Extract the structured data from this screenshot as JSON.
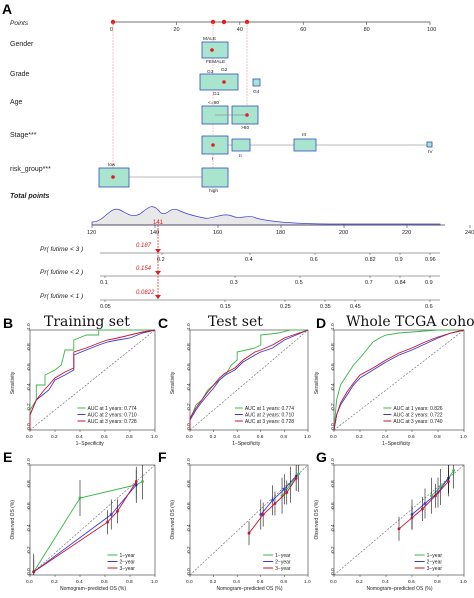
{
  "panels": {
    "A": "A",
    "B": "B",
    "C": "C",
    "D": "D",
    "E": "E",
    "F": "F",
    "G": "G"
  },
  "nomogram": {
    "points_label": "Points",
    "points_ticks": [
      "0",
      "20",
      "40",
      "60",
      "80",
      "100"
    ],
    "variables": [
      {
        "name": "Gender",
        "levels": [
          "MALE",
          "FEMALE"
        ]
      },
      {
        "name": "Grade",
        "levels": [
          "G3",
          "G2",
          "G1",
          "G4"
        ]
      },
      {
        "name": "Age",
        "levels": [
          "<=60",
          ">60"
        ]
      },
      {
        "name": "Stage***",
        "levels": [
          "I",
          "II",
          "III",
          "IV"
        ]
      },
      {
        "name": "risk_group***",
        "levels": [
          "low",
          "high"
        ]
      }
    ],
    "total_points_label": "Total points",
    "total_ticks": [
      "120",
      "140",
      "160",
      "180",
      "200",
      "220",
      "240"
    ],
    "total_value": "141",
    "prob_rows": [
      {
        "label": "Pr( futime < 3 )",
        "value": "0.187",
        "ticks": [
          "0.2",
          "0.4",
          "0.6",
          "0.82",
          "0.9",
          "0.96"
        ]
      },
      {
        "label": "Pr( futime < 2 )",
        "value": "0.154",
        "ticks": [
          "0.1",
          "0.3",
          "0.5",
          "0.7",
          "0.84",
          "0.9"
        ]
      },
      {
        "label": "Pr( futime < 1 )",
        "value": "0.0822",
        "ticks": [
          "0.05",
          "0.15",
          "0.25",
          "0.35",
          "0.45",
          "0.6"
        ]
      }
    ]
  },
  "chart_data": [
    {
      "type": "line",
      "panel": "B",
      "title": "Training set",
      "xlabel": "1−Specificity",
      "ylabel": "Sensitivity",
      "xlim": [
        0,
        1
      ],
      "ylim": [
        0,
        1
      ],
      "ticks": [
        "0.0",
        "0.2",
        "0.4",
        "0.6",
        "0.8",
        "1.0"
      ],
      "series": [
        {
          "name": "AUC at 1 years: 0.774",
          "color": "#3cb44b",
          "x": [
            0,
            0,
            0.05,
            0.05,
            0.12,
            0.12,
            0.2,
            0.25,
            0.28,
            0.35,
            0.35,
            0.45,
            0.55,
            0.55,
            0.65,
            0.8,
            1
          ],
          "y": [
            0,
            0.2,
            0.3,
            0.45,
            0.45,
            0.55,
            0.6,
            0.65,
            0.8,
            0.8,
            0.9,
            0.95,
            0.95,
            1,
            1,
            1,
            1
          ]
        },
        {
          "name": "AUC at 2 years: 0.710",
          "color": "#3b3bdb",
          "x": [
            0,
            0,
            0.05,
            0.1,
            0.15,
            0.2,
            0.28,
            0.35,
            0.35,
            0.45,
            0.55,
            0.62,
            0.7,
            0.8,
            0.9,
            1
          ],
          "y": [
            0,
            0.15,
            0.3,
            0.35,
            0.4,
            0.5,
            0.55,
            0.6,
            0.75,
            0.8,
            0.85,
            0.88,
            0.9,
            0.92,
            0.97,
            1
          ]
        },
        {
          "name": "AUC at 3 years: 0.728",
          "color": "#c8102e",
          "x": [
            0,
            0,
            0.05,
            0.1,
            0.15,
            0.2,
            0.28,
            0.35,
            0.35,
            0.45,
            0.55,
            0.62,
            0.7,
            0.8,
            0.9,
            1
          ],
          "y": [
            0,
            0.15,
            0.3,
            0.38,
            0.45,
            0.52,
            0.58,
            0.62,
            0.78,
            0.82,
            0.87,
            0.9,
            0.92,
            0.95,
            0.98,
            1
          ]
        }
      ]
    },
    {
      "type": "line",
      "panel": "C",
      "title": "Test set",
      "xlabel": "1−Specificity",
      "ylabel": "Sensitivity",
      "xlim": [
        0,
        1
      ],
      "ylim": [
        0,
        1
      ],
      "ticks": [
        "0.0",
        "0.2",
        "0.4",
        "0.6",
        "0.8",
        "1.0"
      ],
      "series": [
        {
          "name": "AUC at 1 years: 0.774",
          "color": "#3cb44b",
          "x": [
            0,
            0,
            0.05,
            0.1,
            0.15,
            0.2,
            0.25,
            0.3,
            0.35,
            0.4,
            0.4,
            0.55,
            0.6,
            0.6,
            0.75,
            0.85,
            1
          ],
          "y": [
            0,
            0.1,
            0.25,
            0.3,
            0.4,
            0.45,
            0.5,
            0.55,
            0.65,
            0.7,
            0.78,
            0.82,
            0.85,
            0.95,
            0.97,
            1,
            1
          ]
        },
        {
          "name": "AUC at 2 years: 0.710",
          "color": "#3b3bdb",
          "x": [
            0,
            0,
            0.05,
            0.1,
            0.15,
            0.2,
            0.25,
            0.3,
            0.38,
            0.45,
            0.55,
            0.6,
            0.7,
            0.8,
            0.9,
            1
          ],
          "y": [
            0,
            0.1,
            0.2,
            0.28,
            0.35,
            0.42,
            0.5,
            0.55,
            0.6,
            0.68,
            0.75,
            0.78,
            0.82,
            0.9,
            0.95,
            1
          ]
        },
        {
          "name": "AUC at 3 years: 0.728",
          "color": "#c8102e",
          "x": [
            0,
            0,
            0.05,
            0.1,
            0.15,
            0.2,
            0.25,
            0.3,
            0.38,
            0.45,
            0.55,
            0.6,
            0.7,
            0.8,
            0.9,
            1
          ],
          "y": [
            0,
            0.12,
            0.22,
            0.3,
            0.38,
            0.45,
            0.52,
            0.57,
            0.62,
            0.7,
            0.78,
            0.8,
            0.85,
            0.92,
            0.96,
            1
          ]
        }
      ]
    },
    {
      "type": "line",
      "panel": "D",
      "title": "Whole TCGA cohort",
      "xlabel": "1−Specificity",
      "ylabel": "Sensitivity",
      "xlim": [
        0,
        1
      ],
      "ylim": [
        0,
        1
      ],
      "ticks": [
        "0.0",
        "0.2",
        "0.4",
        "0.6",
        "0.8",
        "1.0"
      ],
      "series": [
        {
          "name": "AUC at 1 years: 0.826",
          "color": "#3cb44b",
          "x": [
            0,
            0.02,
            0.05,
            0.1,
            0.15,
            0.2,
            0.25,
            0.3,
            0.35,
            0.4,
            0.5,
            0.6,
            0.7,
            0.8,
            0.9,
            1
          ],
          "y": [
            0,
            0.3,
            0.45,
            0.55,
            0.65,
            0.72,
            0.8,
            0.88,
            0.92,
            0.95,
            0.97,
            0.98,
            0.99,
            1,
            1,
            1
          ]
        },
        {
          "name": "AUC at 2 years: 0.722",
          "color": "#3b3bdb",
          "x": [
            0,
            0.02,
            0.05,
            0.1,
            0.15,
            0.2,
            0.3,
            0.4,
            0.5,
            0.6,
            0.7,
            0.8,
            0.9,
            1
          ],
          "y": [
            0,
            0.15,
            0.25,
            0.35,
            0.45,
            0.52,
            0.6,
            0.68,
            0.75,
            0.8,
            0.86,
            0.92,
            0.97,
            1
          ]
        },
        {
          "name": "AUC at 3 years: 0.740",
          "color": "#c8102e",
          "x": [
            0,
            0.02,
            0.05,
            0.1,
            0.15,
            0.2,
            0.3,
            0.4,
            0.5,
            0.6,
            0.7,
            0.8,
            0.9,
            1
          ],
          "y": [
            0,
            0.15,
            0.27,
            0.38,
            0.47,
            0.55,
            0.62,
            0.7,
            0.77,
            0.82,
            0.88,
            0.93,
            0.97,
            1
          ]
        }
      ]
    },
    {
      "type": "line",
      "panel": "E",
      "title": "",
      "xlabel": "Nomogram−predicted OS (%)",
      "ylabel": "Observed OS (%)",
      "xlim": [
        0,
        1
      ],
      "ylim": [
        0,
        1
      ],
      "ticks": [
        "0.0",
        "0.2",
        "0.4",
        "0.6",
        "0.8",
        "1.0"
      ],
      "series": [
        {
          "name": "1−year",
          "color": "#3cb44b",
          "x": [
            0.03,
            0.4,
            0.85,
            0.9
          ],
          "y": [
            0.03,
            0.7,
            0.82,
            0.85
          ]
        },
        {
          "name": "2−year",
          "color": "#3b3bdb",
          "x": [
            0.03,
            0.65,
            0.85
          ],
          "y": [
            0.03,
            0.55,
            0.82
          ]
        },
        {
          "name": "3−year",
          "color": "#c8102e",
          "x": [
            0.03,
            0.62,
            0.7,
            0.85
          ],
          "y": [
            0.03,
            0.48,
            0.58,
            0.85
          ]
        }
      ]
    },
    {
      "type": "line",
      "panel": "F",
      "title": "",
      "xlabel": "Nomogram−predicted OS (%)",
      "ylabel": "Observed OS (%)",
      "xlim": [
        0,
        1
      ],
      "ylim": [
        0,
        1
      ],
      "ticks": [
        "0.0",
        "0.2",
        "0.4",
        "0.6",
        "0.8",
        "1.0"
      ],
      "series": [
        {
          "name": "1−year",
          "color": "#3cb44b",
          "x": [
            0.78,
            0.85,
            0.92
          ],
          "y": [
            0.72,
            0.82,
            0.92
          ]
        },
        {
          "name": "2−year",
          "color": "#3b3bdb",
          "x": [
            0.6,
            0.7,
            0.8,
            0.9
          ],
          "y": [
            0.55,
            0.68,
            0.78,
            0.9
          ]
        },
        {
          "name": "3−year",
          "color": "#c8102e",
          "x": [
            0.5,
            0.62,
            0.72,
            0.82,
            0.9
          ],
          "y": [
            0.38,
            0.55,
            0.65,
            0.75,
            0.88
          ]
        }
      ]
    },
    {
      "type": "line",
      "panel": "G",
      "title": "",
      "xlabel": "Nomogram−predicted OS (%)",
      "ylabel": "Observed OS (%)",
      "xlim": [
        0,
        1
      ],
      "ylim": [
        0,
        1
      ],
      "ticks": [
        "0.0",
        "0.2",
        "0.4",
        "0.6",
        "0.8",
        "1.0"
      ],
      "series": [
        {
          "name": "1−year",
          "color": "#3cb44b",
          "x": [
            0.75,
            0.82,
            0.88,
            0.92
          ],
          "y": [
            0.72,
            0.8,
            0.88,
            0.95
          ]
        },
        {
          "name": "2−year",
          "color": "#3b3bdb",
          "x": [
            0.6,
            0.7,
            0.8,
            0.88
          ],
          "y": [
            0.55,
            0.65,
            0.75,
            0.88
          ]
        },
        {
          "name": "3−year",
          "color": "#c8102e",
          "x": [
            0.5,
            0.6,
            0.68,
            0.78,
            0.88
          ],
          "y": [
            0.42,
            0.52,
            0.6,
            0.72,
            0.85
          ]
        }
      ]
    }
  ]
}
